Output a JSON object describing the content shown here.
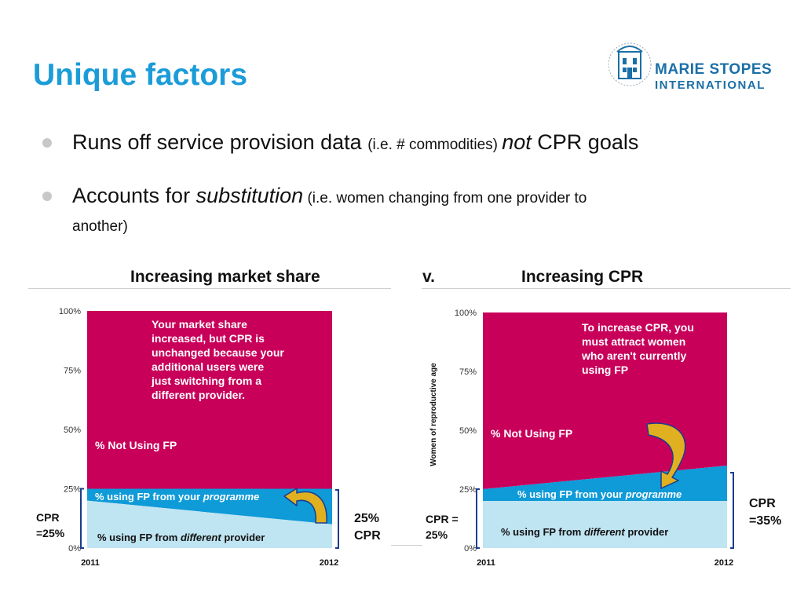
{
  "slide": {
    "title": "Unique factors",
    "logo": {
      "line1": "MARIE STOPES",
      "line2": "INTERNATIONAL",
      "ring_text": "PROVIDING CHOICES IN REPRODUCTIVE HEALTHCARE"
    },
    "bullets": [
      {
        "a": "Runs off service provision data ",
        "b": "(i.e. # commodities) ",
        "c": "not",
        "d": " CPR goals"
      },
      {
        "a": "Accounts for ",
        "b": "substitution",
        "c": " (i.e. women changing from one provider to",
        "d": "another)"
      }
    ],
    "left_heading": "Increasing market share",
    "vs": "v.",
    "right_heading": "Increasing CPR"
  },
  "colors": {
    "title": "#1b9cd8",
    "not_using": "#c8005a",
    "programme": "#0f9ad8",
    "different": "#bfe4f2",
    "arrow": "#e0b020"
  },
  "chart_data": [
    {
      "type": "area",
      "x": [
        "2011",
        "2012"
      ],
      "yticks": [
        "100%",
        "75%",
        "50%",
        "25%",
        "0%"
      ],
      "ylim": [
        0,
        100
      ],
      "series": [
        {
          "name": "% using FP from different provider",
          "values": [
            20,
            10
          ]
        },
        {
          "name": "% using FP from your programme",
          "values": [
            5,
            15
          ]
        },
        {
          "name": "% Not Using FP",
          "values": [
            75,
            75
          ]
        }
      ],
      "annotation": "Your market share increased, but CPR is unchanged because your additional users were just switching from a different provider.",
      "left_label": [
        "CPR",
        "=25%"
      ],
      "right_label": [
        "25%",
        "CPR"
      ],
      "labels": {
        "not_using": "% Not Using FP",
        "programme_a": "% using FP from your ",
        "programme_b": "programme",
        "different_a": "% using FP from ",
        "different_b": "different",
        "different_c": " provider"
      }
    },
    {
      "type": "area",
      "x": [
        "2011",
        "2012"
      ],
      "yticks": [
        "100%",
        "75%",
        "50%",
        "25%",
        "0%"
      ],
      "ylim": [
        0,
        100
      ],
      "ylabel": "Women of reproductive age",
      "series": [
        {
          "name": "% using FP from different provider",
          "values": [
            20,
            20
          ]
        },
        {
          "name": "% using FP from your programme",
          "values": [
            5,
            15
          ]
        },
        {
          "name": "% Not Using FP",
          "values": [
            75,
            65
          ]
        }
      ],
      "annotation": "To increase CPR, you must attract women who aren't currently using FP",
      "left_label": [
        "CPR =",
        "25%"
      ],
      "right_label": [
        "CPR",
        "=35%"
      ],
      "labels": {
        "not_using": "% Not Using FP",
        "programme_a": "% using FP from your ",
        "programme_b": "programme",
        "different_a": "% using FP from ",
        "different_b": "different",
        "different_c": " provider"
      }
    }
  ]
}
